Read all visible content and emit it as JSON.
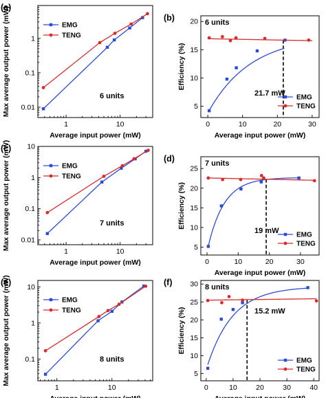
{
  "figure": {
    "chart_data": [
      {
        "panel": "(a)",
        "type": "line",
        "xscale": "log",
        "yscale": "log",
        "xlim": [
          0.3,
          40
        ],
        "ylim": [
          0.005,
          9
        ],
        "xticks": [
          1,
          10
        ],
        "xtick_labels": [
          "1",
          "10"
        ],
        "yticks": [
          0.01,
          0.1,
          1
        ],
        "ytick_labels": [
          "0.01",
          "0.1",
          "1"
        ],
        "xlabel": "Average input power (mW)",
        "ylabel": "Max average output power (mW)",
        "annotation": "6 units",
        "legend": [
          "EMG",
          "TENG"
        ],
        "legend_position": "top-left",
        "series": [
          {
            "name": "EMG",
            "color": "#2a4bd7",
            "marker": "square",
            "x": [
              0.38,
              5.8,
              7.8,
              15,
              26
            ],
            "y": [
              0.009,
              0.55,
              0.9,
              2.0,
              4.0
            ]
          },
          {
            "name": "TENG",
            "color": "#d92b2b",
            "marker": "circle",
            "x": [
              0.38,
              4.2,
              8.0,
              16,
              32
            ],
            "y": [
              0.037,
              0.75,
              1.4,
              2.6,
              5.2
            ]
          }
        ]
      },
      {
        "panel": "(b)",
        "type": "line",
        "xscale": "linear",
        "yscale": "linear",
        "xlim": [
          -2,
          32
        ],
        "ylim": [
          3,
          21
        ],
        "xticks": [
          0,
          10,
          20,
          30
        ],
        "xtick_labels": [
          "0",
          "10",
          "20",
          "30"
        ],
        "yticks": [
          5,
          10,
          15,
          20
        ],
        "ytick_labels": [
          "5",
          "10",
          "15",
          "20"
        ],
        "xlabel": "Average input power (mW)",
        "ylabel": "Efficiency (%)",
        "annotation": "6 units",
        "crossover_label": "21.7 mW",
        "crossover_x": 21.7,
        "legend": [
          "EMG",
          "TENG"
        ],
        "legend_position": "bottom-right",
        "series": [
          {
            "name": "EMG",
            "color": "#2a4bd7",
            "marker": "square",
            "x": [
              0.4,
              5.5,
              8.2,
              14.2,
              22.2
            ],
            "y": [
              4.2,
              9.8,
              11.8,
              14.8,
              16.7
            ],
            "fit": {
              "model": "exp_saturation",
              "a": 17.5,
              "b": 13.7,
              "c": 0.082,
              "from": 0.4,
              "to": 22
            }
          },
          {
            "name": "TENG",
            "color": "#d92b2b",
            "marker": "circle",
            "x": [
              0.4,
              4.2,
              6.5,
              8.1,
              16.4,
              29
            ],
            "y": [
              17.1,
              17.3,
              16.6,
              17.1,
              17.0,
              16.7
            ],
            "fit": {
              "model": "linear",
              "y0": 16.95,
              "y1": 16.6,
              "from": 0,
              "to": 30
            }
          }
        ]
      },
      {
        "panel": "(c)",
        "type": "line",
        "xscale": "log",
        "yscale": "log",
        "xlim": [
          0.3,
          40
        ],
        "ylim": [
          0.007,
          10
        ],
        "xticks": [
          1,
          10
        ],
        "xtick_labels": [
          "1",
          "10"
        ],
        "yticks": [
          0.01,
          0.1,
          1,
          10
        ],
        "ytick_labels": [
          "0.01",
          "0.1",
          "1",
          "10"
        ],
        "xlabel": "Average input power (mW)",
        "ylabel": "Max average output power (mW)",
        "annotation": "7 units",
        "legend": [
          "EMG",
          "TENG"
        ],
        "legend_position": "top-left",
        "series": [
          {
            "name": "EMG",
            "color": "#2a4bd7",
            "marker": "square",
            "x": [
              0.45,
              4.6,
              10.5,
              19,
              30
            ],
            "y": [
              0.016,
              0.72,
              2.0,
              4.0,
              7.0
            ]
          },
          {
            "name": "TENG",
            "color": "#d92b2b",
            "marker": "circle",
            "x": [
              0.45,
              5.0,
              11,
              18,
              33
            ],
            "y": [
              0.075,
              1.1,
              2.4,
              4.0,
              7.5
            ]
          }
        ]
      },
      {
        "panel": "(d)",
        "type": "line",
        "xscale": "linear",
        "yscale": "linear",
        "xlim": [
          -2,
          36
        ],
        "ylim": [
          3,
          28
        ],
        "xticks": [
          0,
          10,
          20,
          30
        ],
        "xtick_labels": [
          "0",
          "10",
          "20",
          "30"
        ],
        "yticks": [
          5,
          10,
          15,
          20,
          25
        ],
        "ytick_labels": [
          "5",
          "10",
          "15",
          "20",
          "25"
        ],
        "xlabel": "Average input power (mW)",
        "ylabel": "Efficiency (%)",
        "annotation": "7 units",
        "crossover_label": "19 mW",
        "crossover_x": 19,
        "legend": [
          "EMG",
          "TENG"
        ],
        "legend_position": "bottom-right",
        "series": [
          {
            "name": "EMG",
            "color": "#2a4bd7",
            "marker": "square",
            "x": [
              0.4,
              4.6,
              10.9,
              17.4,
              29.5
            ],
            "y": [
              5.2,
              15.5,
              19.8,
              21.6,
              22.6
            ],
            "fit": {
              "model": "exp_saturation",
              "a": 22.7,
              "b": 18.8,
              "c": 0.19,
              "from": 0.4,
              "to": 30
            }
          },
          {
            "name": "TENG",
            "color": "#d92b2b",
            "marker": "circle",
            "x": [
              0.4,
              5.0,
              10.8,
              17.5,
              18.2,
              34.5
            ],
            "y": [
              22.6,
              22.2,
              22.2,
              23.2,
              22.6,
              21.9
            ],
            "fit": {
              "model": "linear",
              "y0": 22.6,
              "y1": 22.0,
              "from": 0,
              "to": 35
            }
          }
        ]
      },
      {
        "panel": "(e)",
        "type": "line",
        "xscale": "log",
        "yscale": "log",
        "xlim": [
          0.45,
          55
        ],
        "ylim": [
          0.025,
          15
        ],
        "xticks": [
          1,
          10
        ],
        "xtick_labels": [
          "1",
          "10"
        ],
        "yticks": [
          0.1,
          1,
          10
        ],
        "ytick_labels": [
          "0.1",
          "1",
          "10"
        ],
        "xlabel": "Average input power (mW)",
        "ylabel": "Max average output power (mW)",
        "annotation": "8 units",
        "legend": [
          "EMG",
          "TENG"
        ],
        "legend_position": "top-left",
        "series": [
          {
            "name": "EMG",
            "color": "#2a4bd7",
            "marker": "square",
            "x": [
              0.62,
              5.6,
              10,
              15.2,
              38
            ],
            "y": [
              0.038,
              1.15,
              2.1,
              3.8,
              10.5
            ]
          },
          {
            "name": "TENG",
            "color": "#d92b2b",
            "marker": "circle",
            "x": [
              0.62,
              5.8,
              8.5,
              13.5,
              41
            ],
            "y": [
              0.17,
              1.5,
              2.2,
              3.3,
              10.4
            ]
          }
        ]
      },
      {
        "panel": "(f)",
        "type": "line",
        "xscale": "linear",
        "yscale": "linear",
        "xlim": [
          -2,
          42
        ],
        "ylim": [
          3,
          31
        ],
        "xticks": [
          0,
          10,
          20,
          30,
          40
        ],
        "xtick_labels": [
          "0",
          "10",
          "20",
          "30",
          "40"
        ],
        "yticks": [
          5,
          10,
          15,
          20,
          25,
          30
        ],
        "ytick_labels": [
          "5",
          "10",
          "15",
          "20",
          "25",
          "30"
        ],
        "xlabel": "Average input power (mW)",
        "ylabel": "Efficiency (%)",
        "annotation": "8 units",
        "crossover_label": "15.2 mW",
        "crossover_x": 15.2,
        "legend": [
          "EMG",
          "TENG"
        ],
        "legend_position": "bottom-right",
        "series": [
          {
            "name": "EMG",
            "color": "#2a4bd7",
            "marker": "square",
            "x": [
              0.6,
              5.6,
              10,
              13.5,
              37.8
            ],
            "y": [
              6.5,
              20.2,
              22.9,
              24.8,
              29.0
            ],
            "fit": {
              "model": "exp_saturation",
              "a": 29.3,
              "b": 23.2,
              "c": 0.105,
              "from": 0.6,
              "to": 38
            }
          },
          {
            "name": "TENG",
            "color": "#d92b2b",
            "marker": "circle",
            "x": [
              0.6,
              5.8,
              8.5,
              13.5,
              41
            ],
            "y": [
              25.4,
              24.8,
              26.5,
              25.5,
              25.3
            ],
            "fit": {
              "model": "linear",
              "y0": 25.5,
              "y1": 25.9,
              "from": 0,
              "to": 41
            }
          }
        ]
      }
    ]
  }
}
